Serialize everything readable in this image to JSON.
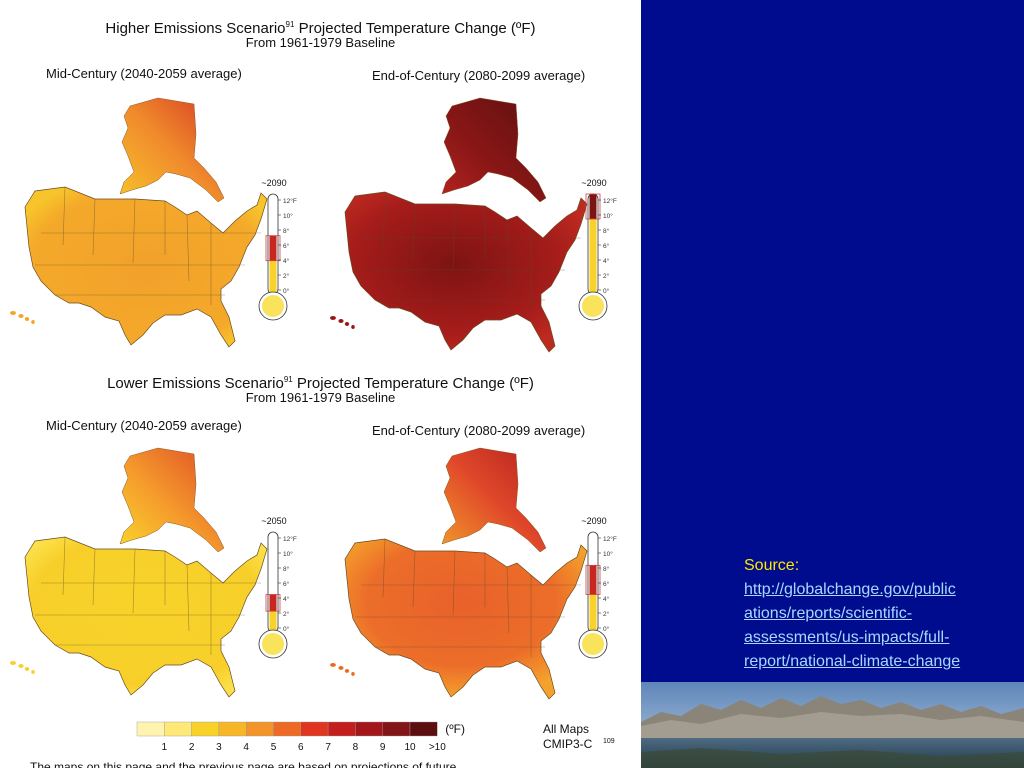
{
  "figure": {
    "top_title": "Higher Emissions Scenario",
    "top_title_sup": "91",
    "top_title_tail": " Projected Temperature Change (ºF)",
    "top_subtitle": "From 1961-1979 Baseline",
    "bottom_title": "Lower Emissions Scenario",
    "bottom_title_sup": "91",
    "bottom_title_tail": " Projected Temperature Change (ºF)",
    "bottom_subtitle": "From 1961-1979 Baseline",
    "mid_label": "Mid-Century (2040-2059 average)",
    "end_label": "End-of-Century (2080-2099 average)",
    "thermometers": [
      {
        "label": "~2090",
        "fill_level": 0.5,
        "band": [
          4,
          7
        ]
      },
      {
        "label": "~2090",
        "fill_level": 0.85,
        "band": [
          9,
          12
        ]
      },
      {
        "label": "~2050",
        "fill_level": 0.3,
        "band": [
          2.5,
          4.5
        ]
      },
      {
        "label": "~2090",
        "fill_level": 0.55,
        "band": [
          4.5,
          8
        ]
      }
    ],
    "thermo_ticks": [
      "12°F",
      "10°",
      "8°",
      "6°",
      "4°",
      "2°",
      "0°"
    ],
    "legend": {
      "unit": "(ºF)",
      "values": [
        "1",
        "2",
        "3",
        "4",
        "5",
        "6",
        "7",
        "8",
        "9",
        "10",
        ">10"
      ],
      "colors": [
        "#fff3b0",
        "#fde878",
        "#f8d229",
        "#f6b627",
        "#f2942a",
        "#ed6a26",
        "#e03521",
        "#c21f1e",
        "#a3171b",
        "#831417",
        "#5c0e10"
      ]
    },
    "note_line1": "All Maps",
    "note_line2": "CMIP3-C",
    "note_sup": "109",
    "cut_text": "The maps on this page and the previous page are based on projections of future"
  },
  "source": {
    "label": "Source:",
    "link": [
      "http://globalchange.gov/public",
      "ations/reports/scientific-",
      "assessments/us-impacts/full-",
      "report/national-climate-change"
    ]
  },
  "colors": {
    "panel": "#000c8e",
    "source_label": "#ffe800",
    "link": "#a8d7ff"
  }
}
